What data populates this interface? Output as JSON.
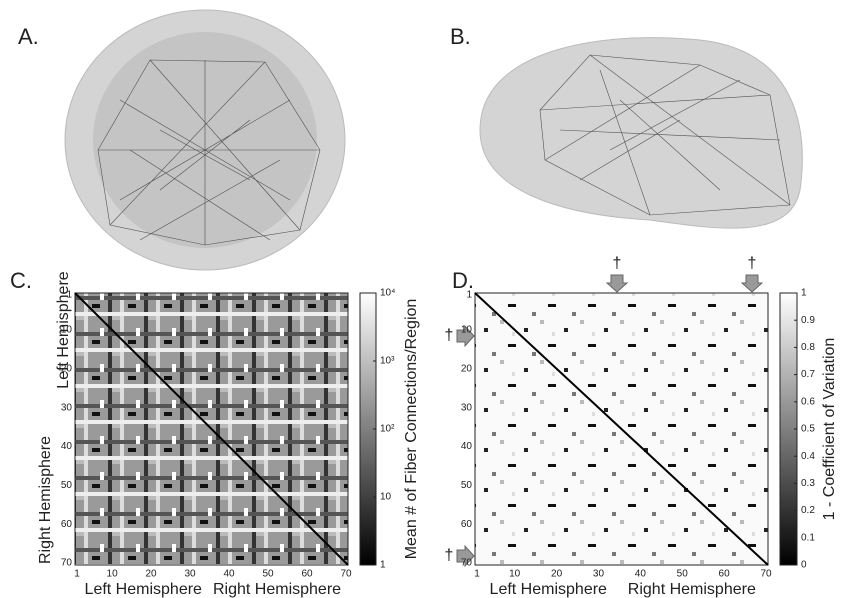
{
  "panels": [
    {
      "label": "A."
    },
    {
      "label": "B."
    },
    {
      "label": "C.",
      "x_ticks": [
        1,
        10,
        20,
        30,
        40,
        50,
        60,
        70
      ],
      "y_ticks": [
        1,
        10,
        20,
        30,
        40,
        50,
        60,
        70
      ],
      "x_axis_labels": [
        "Left Hemisphere",
        "Right Hemisphere"
      ],
      "y_axis_labels": [
        "Left Hemisphere",
        "Right Hemisphere"
      ],
      "colorbar": {
        "label": "Mean # of Fiber Connections/Region",
        "log": true,
        "lim": [
          1,
          10000
        ],
        "ticks": [
          {
            "value": 10000,
            "label": "10⁴"
          },
          {
            "value": 1000,
            "label": "10³"
          },
          {
            "value": 100,
            "label": "10²"
          },
          10,
          1
        ]
      }
    },
    {
      "label": "D.",
      "x_ticks": [
        1,
        10,
        20,
        30,
        40,
        50,
        60,
        70
      ],
      "y_ticks": [
        1,
        10,
        20,
        30,
        40,
        50,
        60,
        70
      ],
      "x_axis_labels": [
        "Left Hemisphere",
        "Right Hemisphere"
      ],
      "markers": [
        "†",
        "†",
        "†",
        "†"
      ],
      "colorbar": {
        "label": "1 - Coefficient of Variation",
        "log": false,
        "lim": [
          0,
          1
        ],
        "ticks": [
          1,
          0.9,
          0.8,
          0.7,
          0.6,
          0.5,
          0.4,
          0.3,
          0.2,
          0.1,
          0
        ]
      }
    }
  ]
}
